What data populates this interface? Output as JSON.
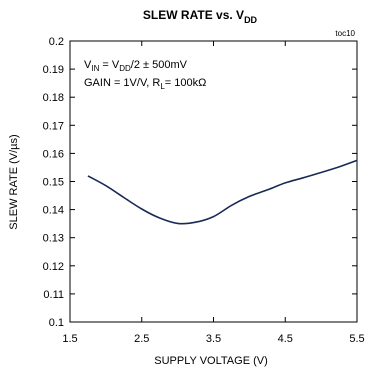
{
  "chart_data": {
    "type": "line",
    "title": {
      "main": "SLEW RATE vs. V",
      "sub": "DD"
    },
    "xlabel": "SUPPLY VOLTAGE (V)",
    "ylabel": "SLEW RATE (V/µs)",
    "xlim": [
      1.5,
      5.5
    ],
    "ylim": [
      0.1,
      0.2
    ],
    "xticks": [
      1.5,
      2.5,
      3.5,
      4.5,
      5.5
    ],
    "xtick_labels": [
      "1.5",
      "2.5",
      "3.5",
      "4.5",
      "5.5"
    ],
    "yticks": [
      0.1,
      0.11,
      0.12,
      0.13,
      0.14,
      0.15,
      0.16,
      0.17,
      0.18,
      0.19,
      0.2
    ],
    "ytick_labels": [
      "0.1",
      "0.11",
      "0.12",
      "0.13",
      "0.14",
      "0.15",
      "0.16",
      "0.17",
      "0.18",
      "0.19",
      "0.2"
    ],
    "grid": false,
    "toc_label": "toc10",
    "annotation": {
      "line1": [
        {
          "text": "V",
          "style": "normal"
        },
        {
          "text": "IN",
          "style": "sub"
        },
        {
          "text": " = V",
          "style": "normal"
        },
        {
          "text": "DD",
          "style": "sub"
        },
        {
          "text": "/2 ± 500mV",
          "style": "normal"
        }
      ],
      "line2": [
        {
          "text": "GAIN = 1V/V, R",
          "style": "normal"
        },
        {
          "text": "L",
          "style": "sub"
        },
        {
          "text": "= 100kΩ",
          "style": "normal"
        }
      ]
    },
    "series": [
      {
        "color": "#1b2a55",
        "x": [
          1.75,
          2.0,
          2.25,
          2.5,
          2.75,
          3.0,
          3.25,
          3.5,
          3.75,
          4.0,
          4.25,
          4.5,
          4.75,
          5.0,
          5.25,
          5.5
        ],
        "y": [
          0.152,
          0.1485,
          0.1443,
          0.1402,
          0.137,
          0.1351,
          0.1355,
          0.1375,
          0.1415,
          0.1447,
          0.147,
          0.1495,
          0.1513,
          0.1532,
          0.1552,
          0.1575
        ]
      }
    ]
  }
}
